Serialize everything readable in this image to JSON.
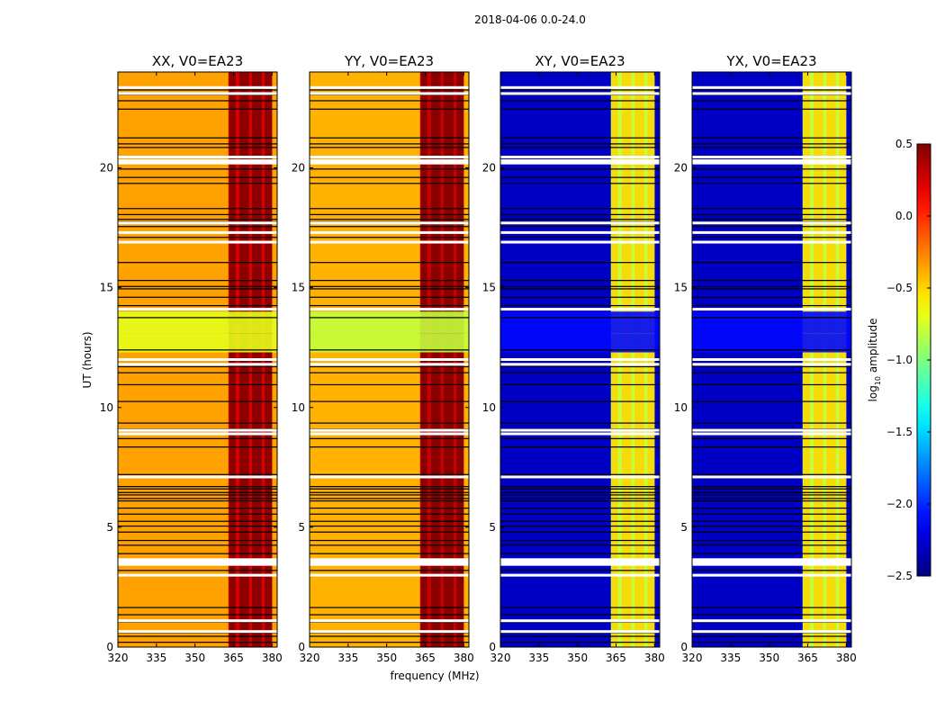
{
  "chart_data": {
    "type": "heatmap",
    "suptitle": "2018-04-06 0.0-24.0",
    "xlabel": "frequency (MHz)",
    "ylabel": "UT (hours)",
    "xlim": [
      320,
      382
    ],
    "ylim": [
      0,
      24
    ],
    "xticks": [
      320,
      335,
      350,
      365,
      380
    ],
    "yticks": [
      0,
      5,
      10,
      15,
      20
    ],
    "ytick_labels": [
      "0",
      "5",
      "10",
      "15",
      "20"
    ],
    "xtick_labels": [
      "320",
      "335",
      "350",
      "365",
      "380"
    ],
    "colorbar": {
      "label": "log10 amplitude",
      "label_base": "log",
      "label_sub": "10",
      "label_rest": " amplitude",
      "colormap": "jet",
      "min": -2.5,
      "max": 0.5,
      "ticks": [
        0.5,
        0.0,
        -0.5,
        -1.0,
        -1.5,
        -2.0,
        -2.5
      ],
      "tick_labels": [
        "0.5",
        "0.0",
        "−0.5",
        "−1.0",
        "−1.5",
        "−2.0",
        "−2.5"
      ]
    },
    "rfi_band_mhz": [
      363,
      380
    ],
    "rfi_columns_mhz": [
      363.3,
      365.8,
      367.3,
      371.0,
      372.2,
      376.0,
      377.2,
      380.0
    ],
    "flagged_rows_black_ut": [
      0.2,
      0.45,
      0.6,
      1.05,
      1.35,
      1.65,
      3.2,
      3.9,
      4.25,
      4.45,
      4.8,
      5.05,
      5.25,
      5.55,
      5.8,
      6.1,
      6.2,
      6.35,
      6.45,
      6.6,
      6.7,
      7.2,
      8.35,
      8.7,
      9.1,
      9.35,
      10.25,
      10.95,
      11.45,
      11.7,
      12.4,
      13.75,
      14.25,
      14.6,
      14.95,
      15.05,
      15.3,
      16.05,
      17.1,
      17.55,
      17.75,
      17.85,
      18.05,
      18.3,
      19.35,
      19.6,
      19.95,
      20.85,
      21.0,
      21.25,
      22.45,
      22.8,
      23.05,
      23.25
    ],
    "flagged_blocks_black_ut": [
      [
        12.3,
        13.1
      ],
      [
        13.1,
        14.0
      ]
    ],
    "flagged_rows_white_ut": [
      0.65,
      1.1,
      3.0,
      3.45,
      3.55,
      3.65,
      7.1,
      8.9,
      9.05,
      11.8,
      12.0,
      14.1,
      16.9,
      17.3,
      17.7,
      20.2,
      20.3,
      20.45,
      23.1,
      23.35
    ],
    "panels": [
      {
        "title": "XX, V0=EA23",
        "pol": "XX",
        "base": -0.35,
        "band": 0.25,
        "blocks": -0.7,
        "show_xlabel": false
      },
      {
        "title": "YY, V0=EA23",
        "pol": "YY",
        "base": -0.4,
        "band": 0.3,
        "blocks": -0.8,
        "show_xlabel": true
      },
      {
        "title": "XY, V0=EA23",
        "pol": "XY",
        "base": -2.3,
        "band": -0.8,
        "blocks": -2.1,
        "show_xlabel": false
      },
      {
        "title": "YX, V0=EA23",
        "pol": "YX",
        "base": -2.3,
        "band": -0.8,
        "blocks": -2.1,
        "show_xlabel": false
      }
    ]
  }
}
